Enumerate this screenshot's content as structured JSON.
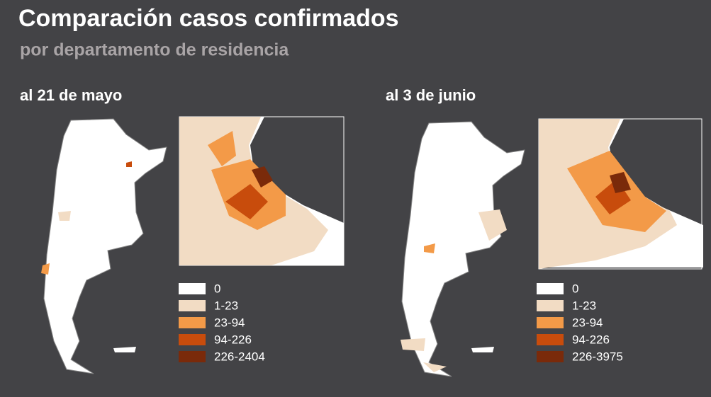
{
  "header": {
    "title": "Comparación casos confirmados",
    "subtitle": "por departamento de residencia"
  },
  "panels": [
    {
      "title": "al 21 de mayo",
      "legend": [
        {
          "label": "0",
          "color": "#ffffff"
        },
        {
          "label": "1-23",
          "color": "#f2dcc4"
        },
        {
          "label": "23-94",
          "color": "#f39a48"
        },
        {
          "label": "94-226",
          "color": "#c84c0c"
        },
        {
          "label": "226-2404",
          "color": "#7a2a0a"
        }
      ]
    },
    {
      "title": "al 3 de junio",
      "legend": [
        {
          "label": "0",
          "color": "#ffffff"
        },
        {
          "label": "1-23",
          "color": "#f2dcc4"
        },
        {
          "label": "23-94",
          "color": "#f39a48"
        },
        {
          "label": "94-226",
          "color": "#c84c0c"
        },
        {
          "label": "226-3975",
          "color": "#7a2a0a"
        }
      ]
    }
  ]
}
